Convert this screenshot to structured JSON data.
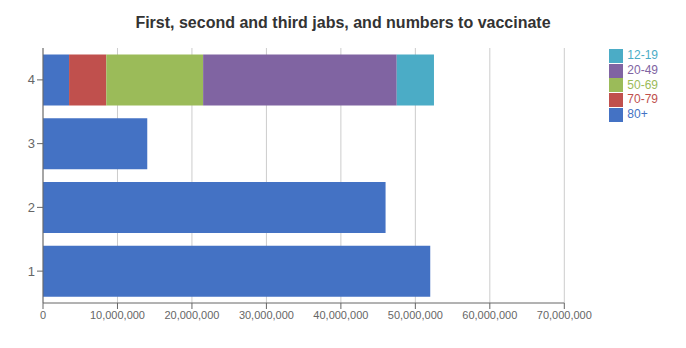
{
  "chart_data": {
    "type": "bar",
    "title": "First, second and third jabs, and numbers to vaccinate",
    "orientation": "horizontal",
    "stacked": true,
    "categories": [
      "1",
      "2",
      "3",
      "4"
    ],
    "series": [
      {
        "name": "80+",
        "color": "#4472C4",
        "values": [
          52000000,
          46000000,
          14000000,
          3500000
        ]
      },
      {
        "name": "70-79",
        "color": "#C0504D",
        "values": [
          0,
          0,
          0,
          5000000
        ]
      },
      {
        "name": "50-69",
        "color": "#9BBB59",
        "values": [
          0,
          0,
          0,
          13000000
        ]
      },
      {
        "name": "20-49",
        "color": "#8064A2",
        "values": [
          0,
          0,
          0,
          26000000
        ]
      },
      {
        "name": "12-19",
        "color": "#4BACC6",
        "values": [
          0,
          0,
          0,
          5000000
        ]
      }
    ],
    "xlim": [
      0,
      70000000
    ],
    "xticks": [
      0,
      {
        "value": 10000000,
        "label": "10,000,000"
      },
      {
        "value": 20000000,
        "label": "20,000,000"
      },
      {
        "value": 30000000,
        "label": "30,000,000"
      },
      {
        "value": 40000000,
        "label": "40,000,000"
      },
      {
        "value": 50000000,
        "label": "50,000,000"
      },
      {
        "value": 60000000,
        "label": "60,000,000"
      },
      {
        "value": 70000000,
        "label": "70,000,000"
      }
    ],
    "grid": true,
    "legend": "right"
  }
}
